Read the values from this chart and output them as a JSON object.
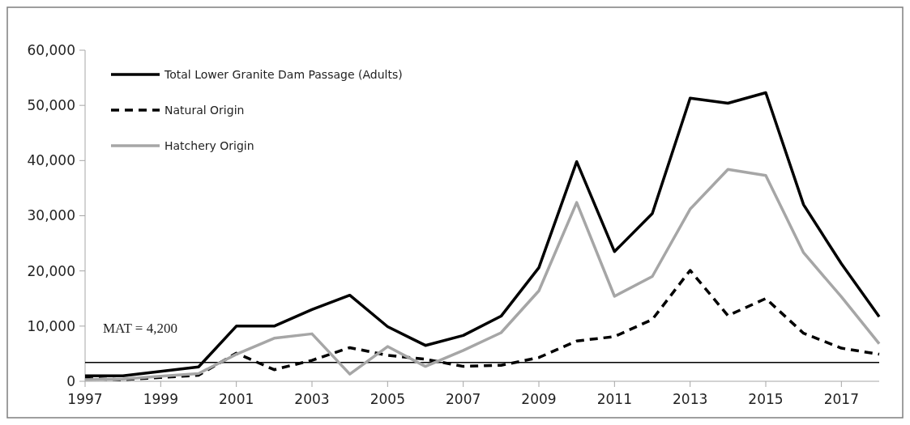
{
  "chart_data": {
    "type": "line",
    "x": [
      1997,
      1998,
      1999,
      2000,
      2001,
      2002,
      2003,
      2004,
      2005,
      2006,
      2007,
      2008,
      2009,
      2010,
      2011,
      2012,
      2013,
      2014,
      2015,
      2016,
      2017,
      2018
    ],
    "series": [
      {
        "name": "Total Lower Granite Dam Passage (Adults)",
        "color": "#000000",
        "line_style": "solid",
        "values": [
          1000,
          1000,
          1800,
          2600,
          10000,
          10000,
          13000,
          15600,
          9900,
          6500,
          8300,
          11800,
          20600,
          39800,
          23500,
          30400,
          51300,
          50400,
          52300,
          32000,
          21300,
          11700
        ]
      },
      {
        "name": "Natural Origin",
        "color": "#000000",
        "line_style": "dashed",
        "values": [
          500,
          300,
          700,
          1100,
          5100,
          2100,
          3800,
          6100,
          4700,
          4000,
          2700,
          2900,
          4300,
          7300,
          8100,
          11200,
          20100,
          11900,
          15000,
          8700,
          6000,
          4900
        ]
      },
      {
        "name": "Hatchery Origin",
        "color": "#a6a6a6",
        "line_style": "solid",
        "values": [
          300,
          400,
          900,
          1400,
          4900,
          7800,
          8600,
          1300,
          6300,
          2700,
          5600,
          8800,
          16400,
          32400,
          15400,
          19000,
          31200,
          38400,
          37300,
          23300,
          15300,
          6800
        ]
      }
    ],
    "xlim": [
      1997,
      2018
    ],
    "xticks": [
      1997,
      1999,
      2001,
      2003,
      2005,
      2007,
      2009,
      2011,
      2013,
      2015,
      2017
    ],
    "ylim": [
      0,
      60000
    ],
    "yticks": [
      {
        "value": 0,
        "label": "0"
      },
      {
        "value": 10000,
        "label": "10,000"
      },
      {
        "value": 20000,
        "label": "20,000"
      },
      {
        "value": 30000,
        "label": "30,000"
      },
      {
        "value": 40000,
        "label": "40,000"
      },
      {
        "value": 50000,
        "label": "50,000"
      },
      {
        "value": 60000,
        "label": "60,000"
      }
    ],
    "ref_lines": [
      {
        "axis": "y",
        "value": 3400,
        "color": "#000000"
      }
    ],
    "annotations": [
      "MAT = 4,200"
    ],
    "grid": false,
    "legend": "top left"
  }
}
